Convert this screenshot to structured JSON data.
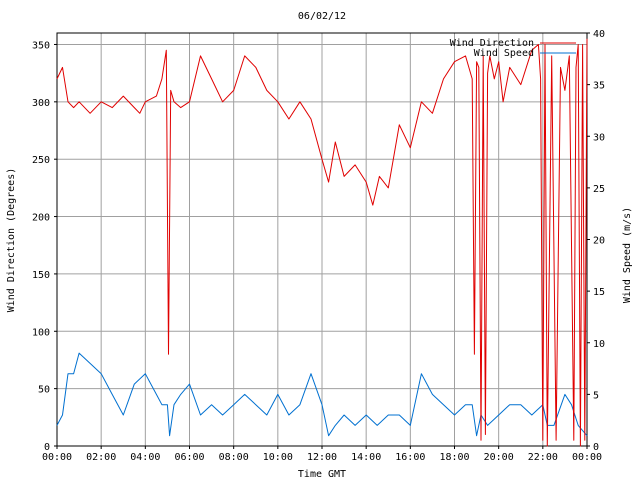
{
  "chart_data": {
    "type": "line",
    "title": "06/02/12",
    "xlabel": "Time GMT",
    "ylabel_left": "Wind Direction (Degrees)",
    "ylabel_right": "Wind Speed (m/s)",
    "x_range_hours": [
      0,
      24
    ],
    "x_ticks": [
      "00:00",
      "02:00",
      "04:00",
      "06:00",
      "08:00",
      "10:00",
      "12:00",
      "14:00",
      "16:00",
      "18:00",
      "20:00",
      "22:00",
      "00:00"
    ],
    "y_left_range": [
      0,
      360
    ],
    "y_left_ticks": [
      "0",
      "50",
      "100",
      "150",
      "200",
      "250",
      "300",
      "350"
    ],
    "y_right_range": [
      0,
      40
    ],
    "y_right_ticks": [
      "0",
      "5",
      "10",
      "15",
      "20",
      "25",
      "30",
      "35",
      "40"
    ],
    "grid": true,
    "legend_position": "top-right",
    "series": [
      {
        "name": "Wind Direction",
        "axis": "left",
        "color": "#e00000",
        "x": [
          0,
          0.25,
          0.5,
          0.75,
          1,
          1.5,
          2,
          2.5,
          3,
          3.5,
          3.75,
          4,
          4.5,
          4.75,
          4.95,
          5.05,
          5.15,
          5.3,
          5.6,
          6,
          6.5,
          7,
          7.5,
          8,
          8.5,
          9,
          9.5,
          10,
          10.5,
          11,
          11.5,
          12,
          12.3,
          12.6,
          13,
          13.5,
          14,
          14.3,
          14.6,
          15,
          15.5,
          16,
          16.5,
          17,
          17.5,
          18,
          18.5,
          18.8,
          18.9,
          19.0,
          19.1,
          19.2,
          19.3,
          19.4,
          19.5,
          19.6,
          19.8,
          20,
          20.2,
          20.5,
          21,
          21.5,
          21.8,
          21.9,
          22.0,
          22.1,
          22.2,
          22.4,
          22.6,
          22.8,
          23.0,
          23.2,
          23.4,
          23.5,
          23.6,
          23.7,
          23.8,
          23.9,
          24
        ],
        "values": [
          320,
          330,
          300,
          295,
          300,
          290,
          300,
          295,
          305,
          295,
          290,
          300,
          305,
          320,
          345,
          80,
          310,
          300,
          295,
          300,
          340,
          320,
          300,
          310,
          340,
          330,
          310,
          300,
          285,
          300,
          285,
          250,
          230,
          265,
          235,
          245,
          230,
          210,
          235,
          225,
          280,
          260,
          300,
          290,
          320,
          335,
          340,
          320,
          80,
          335,
          330,
          5,
          340,
          10,
          325,
          340,
          320,
          335,
          300,
          330,
          315,
          345,
          350,
          320,
          5,
          350,
          0,
          340,
          5,
          330,
          310,
          340,
          5,
          330,
          350,
          0,
          350,
          5,
          355
        ]
      },
      {
        "name": "Wind Speed",
        "axis": "right",
        "color": "#0070d0",
        "x": [
          0,
          0.25,
          0.5,
          0.75,
          1,
          1.5,
          2,
          2.5,
          3,
          3.5,
          4,
          4.5,
          4.75,
          5,
          5.1,
          5.3,
          5.6,
          6,
          6.5,
          7,
          7.5,
          8,
          8.5,
          9,
          9.5,
          10,
          10.5,
          11,
          11.5,
          12,
          12.3,
          12.6,
          13,
          13.5,
          14,
          14.5,
          15,
          15.5,
          16,
          16.5,
          17,
          17.5,
          18,
          18.5,
          18.8,
          19,
          19.2,
          19.5,
          20,
          20.5,
          21,
          21.5,
          22,
          22.2,
          22.5,
          23,
          23.3,
          23.6,
          24
        ],
        "values": [
          2,
          3,
          7,
          7,
          9,
          8,
          7,
          5,
          3,
          6,
          7,
          5,
          4,
          4,
          1,
          4,
          5,
          6,
          3,
          4,
          3,
          4,
          5,
          4,
          3,
          5,
          3,
          4,
          7,
          4,
          1,
          2,
          3,
          2,
          3,
          2,
          3,
          3,
          2,
          7,
          5,
          4,
          3,
          4,
          4,
          1,
          3,
          2,
          3,
          4,
          4,
          3,
          4,
          2,
          2,
          5,
          4,
          2,
          1
        ]
      }
    ]
  }
}
